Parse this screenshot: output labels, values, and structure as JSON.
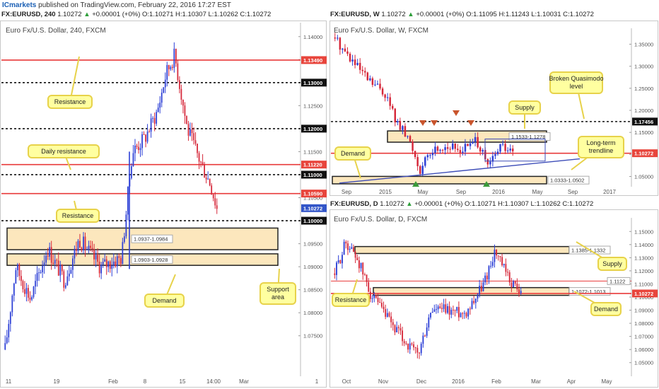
{
  "header": {
    "brand": "ICmarkets",
    "published": "published on TradingView.com, February 22, 2016 17:27 EST"
  },
  "colors": {
    "bull": "#2c3fd6",
    "bear": "#d6283a",
    "resistance": "#e83a3a",
    "zone_fill": "#fbe3b1",
    "callout_fill": "#ffffa0",
    "callout_border": "#e7d24a",
    "price_tag": "#e8453c",
    "current_tag": "#3255c8"
  },
  "panels": {
    "h4": {
      "symbol_bar": {
        "symbol": "FX:EURUSD, 240",
        "last": "1.10272",
        "change": "+0.00001 (+0%)",
        "ohlc": [
          "O:1.10271",
          "H:1.10307",
          "L:1.10262",
          "C:1.10272"
        ]
      },
      "title": "Euro Fx/U.S. Dollar, 240, FXCM",
      "axis_ticks": [
        "1.14000",
        "1.13500",
        "1.13000",
        "1.12500",
        "1.12000",
        "1.11500",
        "1.11000",
        "1.10500",
        "1.10000",
        "1.09500",
        "1.09000",
        "1.08500",
        "1.08000",
        "1.07500"
      ],
      "price_tags": [
        {
          "label": "1.13490",
          "price": 1.1349,
          "kind": "res"
        },
        {
          "label": "1.13000",
          "price": 1.13,
          "kind": "dark"
        },
        {
          "label": "1.12000",
          "price": 1.12,
          "kind": "dark"
        },
        {
          "label": "1.11220",
          "price": 1.1122,
          "kind": "res"
        },
        {
          "label": "1.11000",
          "price": 1.11,
          "kind": "dark"
        },
        {
          "label": "1.10590",
          "price": 1.1059,
          "kind": "res"
        },
        {
          "label": "1.10272",
          "price": 1.10272,
          "kind": "cur"
        },
        {
          "label": "1.10000",
          "price": 1.1,
          "kind": "dark"
        }
      ],
      "time_ticks": [
        "11",
        "19",
        "Feb",
        "8",
        "15",
        "14:00",
        "Mar",
        "1"
      ],
      "zones": [
        {
          "label": "1.0937-1.0984",
          "top": 1.0984,
          "bottom": 1.0937
        },
        {
          "label": "1.0903-1.0928",
          "top": 1.0928,
          "bottom": 1.0903
        }
      ],
      "callouts": [
        {
          "text": "Resistance"
        },
        {
          "text": "Daily resistance"
        },
        {
          "text": "Resistance"
        },
        {
          "text": "Demand"
        },
        {
          "text": "Support area"
        }
      ]
    },
    "weekly": {
      "symbol_bar": {
        "symbol": "FX:EURUSD, W",
        "last": "1.10272",
        "change": "+0.00001 (+0%)",
        "ohlc": [
          "O:1.11095",
          "H:1.11243",
          "L:1.10031",
          "C:1.10272"
        ]
      },
      "title": "Euro Fx/U.S. Dollar, W, FXCM",
      "axis_ticks": [
        "1.35000",
        "1.30000",
        "1.25000",
        "1.20000",
        "1.15000",
        "1.10000",
        "1.05000"
      ],
      "price_tags": [
        {
          "label": "1.17456",
          "price": 1.17456,
          "kind": "dark"
        },
        {
          "label": "1.10272",
          "price": 1.10272,
          "kind": "res"
        }
      ],
      "time_ticks": [
        "Sep",
        "2015",
        "May",
        "Sep",
        "2016",
        "May",
        "Sep",
        "2017"
      ],
      "zones": [
        {
          "label": "1.1533-1.1278",
          "top": 1.1533,
          "bottom": 1.1278
        },
        {
          "label": "1.0333-1.0502",
          "top": 1.0502,
          "bottom": 1.0333
        }
      ],
      "callouts": [
        {
          "text": "Broken Quasimodo level"
        },
        {
          "text": "Supply"
        },
        {
          "text": "Long-term trendline"
        },
        {
          "text": "Demand"
        }
      ]
    },
    "daily": {
      "symbol_bar": {
        "symbol": "FX:EURUSD, D",
        "last": "1.10272",
        "change": "+0.00001 (+0%)",
        "ohlc": [
          "O:1.10271",
          "H:1.10307",
          "L:1.10262",
          "C:1.10272"
        ]
      },
      "title": "Euro Fx/U.S. Dollar, D, FXCM",
      "axis_ticks": [
        "1.15000",
        "1.14000",
        "1.13000",
        "1.12000",
        "1.11000",
        "1.10000",
        "1.09000",
        "1.08000",
        "1.07000",
        "1.06000",
        "1.05000"
      ],
      "price_tags": [
        {
          "label": "1.10272",
          "price": 1.10272,
          "kind": "res"
        }
      ],
      "time_ticks": [
        "Oct",
        "Nov",
        "Dec",
        "2016",
        "Feb",
        "Mar",
        "Apr",
        "May"
      ],
      "zones": [
        {
          "label": "1.1385-1.1332",
          "top": 1.1385,
          "bottom": 1.1332
        },
        {
          "label": "1.1072-1.1013",
          "top": 1.1072,
          "bottom": 1.1013
        }
      ],
      "lines": [
        {
          "label": "1.1122",
          "price": 1.1122
        }
      ],
      "callouts": [
        {
          "text": "Supply"
        },
        {
          "text": "Resistance"
        },
        {
          "text": "Demand"
        }
      ]
    }
  },
  "chart_data": [
    {
      "type": "line",
      "title": "Euro Fx/U.S. Dollar, 240, FXCM",
      "ylim": [
        1.0705,
        1.1415
      ],
      "x": [
        "11",
        "19",
        "Feb",
        "8",
        "15",
        "14:00"
      ],
      "series": [
        {
          "values": [
            1.085,
            1.089,
            1.0925,
            1.12,
            1.132,
            1.1027
          ]
        }
      ],
      "levels": [
        1.1349,
        1.13,
        1.12,
        1.1122,
        1.11,
        1.1059,
        1.1
      ]
    },
    {
      "type": "line",
      "title": "Euro Fx/U.S. Dollar, W, FXCM",
      "ylim": [
        1.03,
        1.37
      ],
      "x": [
        "Sep",
        "2015",
        "May",
        "Sep",
        "2016"
      ],
      "series": [
        {
          "values": [
            1.26,
            1.15,
            1.12,
            1.13,
            1.09
          ]
        }
      ],
      "levels": [
        1.17456
      ]
    },
    {
      "type": "line",
      "title": "Euro Fx/U.S. Dollar, D, FXCM",
      "ylim": [
        1.045,
        1.155
      ],
      "x": [
        "Oct",
        "Nov",
        "Dec",
        "2016",
        "Feb"
      ],
      "series": [
        {
          "values": [
            1.13,
            1.095,
            1.062,
            1.087,
            1.12
          ]
        }
      ],
      "levels": [
        1.1122
      ]
    }
  ]
}
